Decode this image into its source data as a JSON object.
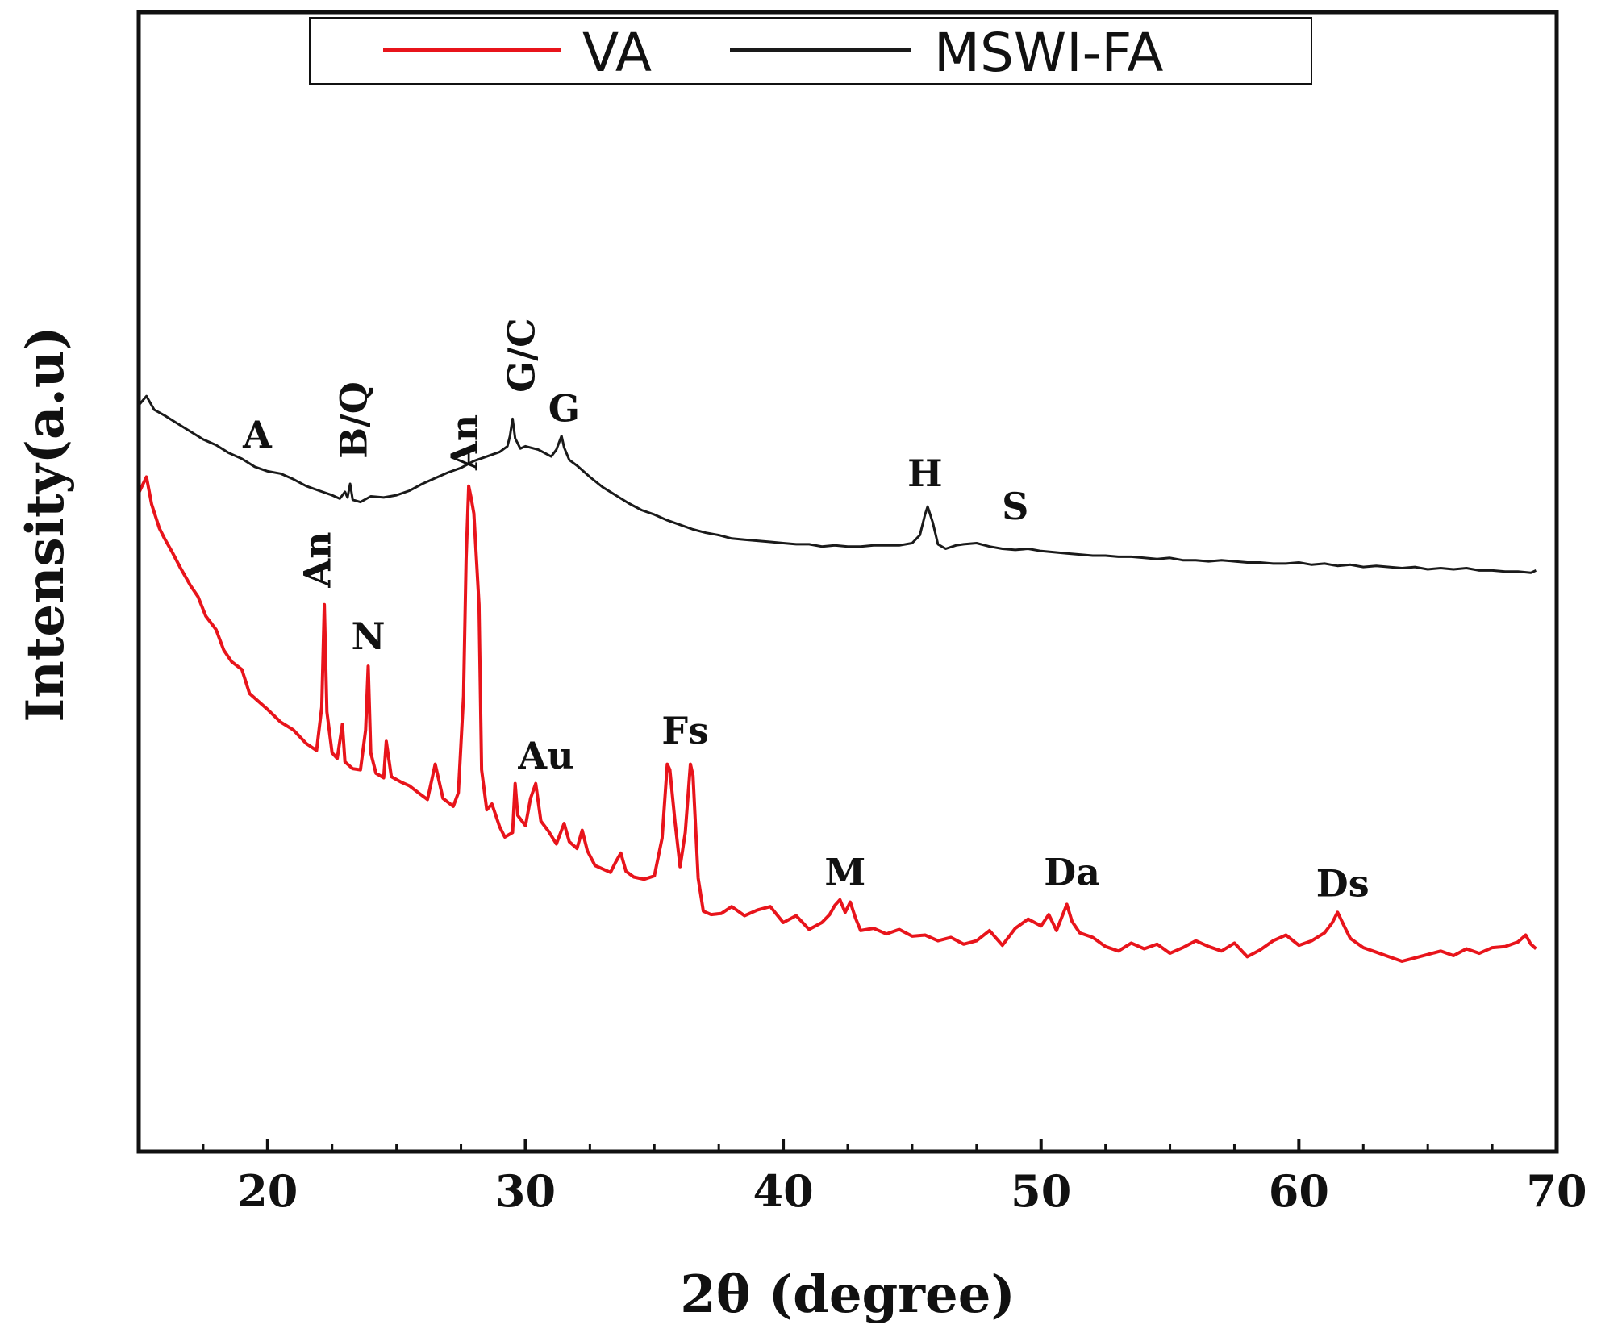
{
  "chart_data": {
    "type": "line",
    "title": "",
    "xlabel": "2θ (degree)",
    "ylabel": "Intensity(a.u)",
    "xlim": [
      15,
      70
    ],
    "ylim": [
      0,
      100
    ],
    "xticks": [
      "20",
      "30",
      "40",
      "50",
      "60",
      "70"
    ],
    "xtick_values": [
      20,
      30,
      40,
      50,
      60,
      70
    ],
    "grid": false,
    "legend_position": "top-center",
    "legend": [
      "VA",
      "MSWI-FA"
    ],
    "series": [
      {
        "name": "VA",
        "color": "#e8141b",
        "points": [
          [
            15.0,
            57.8
          ],
          [
            15.3,
            59.2
          ],
          [
            15.5,
            56.8
          ],
          [
            15.8,
            54.7
          ],
          [
            16.0,
            53.8
          ],
          [
            16.3,
            52.6
          ],
          [
            16.6,
            51.3
          ],
          [
            17.0,
            49.7
          ],
          [
            17.3,
            48.7
          ],
          [
            17.6,
            47.0
          ],
          [
            18.0,
            45.8
          ],
          [
            18.3,
            44.0
          ],
          [
            18.6,
            43.0
          ],
          [
            19.0,
            42.3
          ],
          [
            19.3,
            40.2
          ],
          [
            19.6,
            39.6
          ],
          [
            20.0,
            38.8
          ],
          [
            20.5,
            37.7
          ],
          [
            21.0,
            37.0
          ],
          [
            21.5,
            35.8
          ],
          [
            21.9,
            35.2
          ],
          [
            22.1,
            39.0
          ],
          [
            22.2,
            48.0
          ],
          [
            22.3,
            38.6
          ],
          [
            22.5,
            35.0
          ],
          [
            22.7,
            34.5
          ],
          [
            22.9,
            37.5
          ],
          [
            23.0,
            34.2
          ],
          [
            23.3,
            33.6
          ],
          [
            23.6,
            33.5
          ],
          [
            23.8,
            37.0
          ],
          [
            23.9,
            42.6
          ],
          [
            24.0,
            35.0
          ],
          [
            24.2,
            33.2
          ],
          [
            24.5,
            32.8
          ],
          [
            24.6,
            36.0
          ],
          [
            24.8,
            32.9
          ],
          [
            25.2,
            32.4
          ],
          [
            25.5,
            32.1
          ],
          [
            25.9,
            31.4
          ],
          [
            26.2,
            30.9
          ],
          [
            26.5,
            34.0
          ],
          [
            26.8,
            31.0
          ],
          [
            27.2,
            30.3
          ],
          [
            27.4,
            31.5
          ],
          [
            27.6,
            40.0
          ],
          [
            27.7,
            52.0
          ],
          [
            27.8,
            58.4
          ],
          [
            27.9,
            57.3
          ],
          [
            28.0,
            56.0
          ],
          [
            28.2,
            48.0
          ],
          [
            28.3,
            33.5
          ],
          [
            28.5,
            30.0
          ],
          [
            28.7,
            30.5
          ],
          [
            29.0,
            28.5
          ],
          [
            29.2,
            27.6
          ],
          [
            29.5,
            28.0
          ],
          [
            29.6,
            32.3
          ],
          [
            29.7,
            29.5
          ],
          [
            30.0,
            28.6
          ],
          [
            30.2,
            31.0
          ],
          [
            30.4,
            32.3
          ],
          [
            30.6,
            29.0
          ],
          [
            30.9,
            28.1
          ],
          [
            31.2,
            27.0
          ],
          [
            31.5,
            28.8
          ],
          [
            31.7,
            27.2
          ],
          [
            32.0,
            26.6
          ],
          [
            32.2,
            28.2
          ],
          [
            32.4,
            26.4
          ],
          [
            32.7,
            25.1
          ],
          [
            33.0,
            24.8
          ],
          [
            33.3,
            24.5
          ],
          [
            33.5,
            25.4
          ],
          [
            33.7,
            26.2
          ],
          [
            33.9,
            24.6
          ],
          [
            34.2,
            24.1
          ],
          [
            34.6,
            23.9
          ],
          [
            35.0,
            24.2
          ],
          [
            35.3,
            27.5
          ],
          [
            35.5,
            34.0
          ],
          [
            35.6,
            33.5
          ],
          [
            35.8,
            29.0
          ],
          [
            36.0,
            25.0
          ],
          [
            36.2,
            28.0
          ],
          [
            36.4,
            34.0
          ],
          [
            36.5,
            33.0
          ],
          [
            36.7,
            24.0
          ],
          [
            36.9,
            21.1
          ],
          [
            37.2,
            20.8
          ],
          [
            37.6,
            20.9
          ],
          [
            38.0,
            21.5
          ],
          [
            38.5,
            20.7
          ],
          [
            39.0,
            21.2
          ],
          [
            39.5,
            21.5
          ],
          [
            40.0,
            20.1
          ],
          [
            40.5,
            20.7
          ],
          [
            41.0,
            19.5
          ],
          [
            41.5,
            20.1
          ],
          [
            41.8,
            20.8
          ],
          [
            42.0,
            21.6
          ],
          [
            42.2,
            22.1
          ],
          [
            42.4,
            21.0
          ],
          [
            42.6,
            21.9
          ],
          [
            42.8,
            20.5
          ],
          [
            43.0,
            19.4
          ],
          [
            43.5,
            19.6
          ],
          [
            44.0,
            19.1
          ],
          [
            44.5,
            19.5
          ],
          [
            45.0,
            18.9
          ],
          [
            45.5,
            19.0
          ],
          [
            46.0,
            18.5
          ],
          [
            46.5,
            18.8
          ],
          [
            47.0,
            18.2
          ],
          [
            47.5,
            18.5
          ],
          [
            48.0,
            19.4
          ],
          [
            48.5,
            18.1
          ],
          [
            49.0,
            19.6
          ],
          [
            49.5,
            20.4
          ],
          [
            50.0,
            19.8
          ],
          [
            50.3,
            20.8
          ],
          [
            50.6,
            19.4
          ],
          [
            51.0,
            21.7
          ],
          [
            51.2,
            20.2
          ],
          [
            51.5,
            19.2
          ],
          [
            52.0,
            18.8
          ],
          [
            52.5,
            18.0
          ],
          [
            53.0,
            17.6
          ],
          [
            53.5,
            18.3
          ],
          [
            54.0,
            17.8
          ],
          [
            54.5,
            18.2
          ],
          [
            55.0,
            17.4
          ],
          [
            55.5,
            17.9
          ],
          [
            56.0,
            18.5
          ],
          [
            56.5,
            18.0
          ],
          [
            57.0,
            17.6
          ],
          [
            57.5,
            18.3
          ],
          [
            58.0,
            17.1
          ],
          [
            58.5,
            17.7
          ],
          [
            59.0,
            18.5
          ],
          [
            59.5,
            19.0
          ],
          [
            60.0,
            18.1
          ],
          [
            60.5,
            18.5
          ],
          [
            61.0,
            19.2
          ],
          [
            61.3,
            20.1
          ],
          [
            61.5,
            21.0
          ],
          [
            61.8,
            19.6
          ],
          [
            62.0,
            18.7
          ],
          [
            62.5,
            17.9
          ],
          [
            63.0,
            17.5
          ],
          [
            63.5,
            17.1
          ],
          [
            64.0,
            16.7
          ],
          [
            64.5,
            17.0
          ],
          [
            65.0,
            17.3
          ],
          [
            65.5,
            17.6
          ],
          [
            66.0,
            17.2
          ],
          [
            66.5,
            17.8
          ],
          [
            67.0,
            17.4
          ],
          [
            67.5,
            17.9
          ],
          [
            68.0,
            18.0
          ],
          [
            68.5,
            18.4
          ],
          [
            68.8,
            19.0
          ],
          [
            69.0,
            18.2
          ],
          [
            69.2,
            17.8
          ]
        ]
      },
      {
        "name": "MSWI-FA",
        "color": "#1a1a1a",
        "points": [
          [
            15.0,
            65.5
          ],
          [
            15.3,
            66.3
          ],
          [
            15.6,
            65.1
          ],
          [
            16.0,
            64.6
          ],
          [
            16.5,
            63.9
          ],
          [
            17.0,
            63.2
          ],
          [
            17.5,
            62.5
          ],
          [
            18.0,
            62.0
          ],
          [
            18.5,
            61.3
          ],
          [
            19.0,
            60.8
          ],
          [
            19.5,
            60.1
          ],
          [
            20.0,
            59.7
          ],
          [
            20.5,
            59.5
          ],
          [
            21.0,
            59.0
          ],
          [
            21.5,
            58.4
          ],
          [
            22.0,
            58.0
          ],
          [
            22.5,
            57.6
          ],
          [
            22.8,
            57.3
          ],
          [
            23.0,
            57.9
          ],
          [
            23.1,
            57.4
          ],
          [
            23.2,
            58.6
          ],
          [
            23.3,
            57.2
          ],
          [
            23.6,
            57.0
          ],
          [
            24.0,
            57.5
          ],
          [
            24.5,
            57.4
          ],
          [
            25.0,
            57.6
          ],
          [
            25.5,
            58.0
          ],
          [
            26.0,
            58.6
          ],
          [
            26.5,
            59.1
          ],
          [
            27.0,
            59.6
          ],
          [
            27.5,
            60.0
          ],
          [
            28.0,
            60.6
          ],
          [
            28.5,
            61.0
          ],
          [
            29.0,
            61.4
          ],
          [
            29.3,
            61.9
          ],
          [
            29.4,
            62.8
          ],
          [
            29.5,
            64.3
          ],
          [
            29.6,
            62.6
          ],
          [
            29.8,
            61.7
          ],
          [
            30.0,
            61.9
          ],
          [
            30.5,
            61.6
          ],
          [
            31.0,
            61.0
          ],
          [
            31.2,
            61.6
          ],
          [
            31.4,
            62.8
          ],
          [
            31.5,
            61.8
          ],
          [
            31.7,
            60.7
          ],
          [
            32.0,
            60.2
          ],
          [
            32.5,
            59.2
          ],
          [
            33.0,
            58.3
          ],
          [
            33.5,
            57.6
          ],
          [
            34.0,
            56.9
          ],
          [
            34.5,
            56.3
          ],
          [
            35.0,
            55.9
          ],
          [
            35.5,
            55.4
          ],
          [
            36.0,
            55.0
          ],
          [
            36.5,
            54.6
          ],
          [
            37.0,
            54.3
          ],
          [
            37.5,
            54.1
          ],
          [
            38.0,
            53.8
          ],
          [
            38.5,
            53.7
          ],
          [
            39.0,
            53.6
          ],
          [
            39.5,
            53.5
          ],
          [
            40.0,
            53.4
          ],
          [
            40.5,
            53.3
          ],
          [
            41.0,
            53.3
          ],
          [
            41.5,
            53.1
          ],
          [
            42.0,
            53.2
          ],
          [
            42.5,
            53.1
          ],
          [
            43.0,
            53.1
          ],
          [
            43.5,
            53.2
          ],
          [
            44.0,
            53.2
          ],
          [
            44.5,
            53.2
          ],
          [
            45.0,
            53.4
          ],
          [
            45.3,
            54.1
          ],
          [
            45.5,
            55.9
          ],
          [
            45.6,
            56.6
          ],
          [
            45.8,
            55.2
          ],
          [
            46.0,
            53.3
          ],
          [
            46.3,
            52.9
          ],
          [
            46.7,
            53.2
          ],
          [
            47.0,
            53.3
          ],
          [
            47.5,
            53.4
          ],
          [
            48.0,
            53.1
          ],
          [
            48.5,
            52.9
          ],
          [
            49.0,
            52.8
          ],
          [
            49.5,
            52.9
          ],
          [
            50.0,
            52.7
          ],
          [
            50.5,
            52.6
          ],
          [
            51.0,
            52.5
          ],
          [
            51.5,
            52.4
          ],
          [
            52.0,
            52.3
          ],
          [
            52.5,
            52.3
          ],
          [
            53.0,
            52.2
          ],
          [
            53.5,
            52.2
          ],
          [
            54.0,
            52.1
          ],
          [
            54.5,
            52.0
          ],
          [
            55.0,
            52.1
          ],
          [
            55.5,
            51.9
          ],
          [
            56.0,
            51.9
          ],
          [
            56.5,
            51.8
          ],
          [
            57.0,
            51.9
          ],
          [
            57.5,
            51.8
          ],
          [
            58.0,
            51.7
          ],
          [
            58.5,
            51.7
          ],
          [
            59.0,
            51.6
          ],
          [
            59.5,
            51.6
          ],
          [
            60.0,
            51.7
          ],
          [
            60.5,
            51.5
          ],
          [
            61.0,
            51.6
          ],
          [
            61.5,
            51.4
          ],
          [
            62.0,
            51.5
          ],
          [
            62.5,
            51.3
          ],
          [
            63.0,
            51.4
          ],
          [
            63.5,
            51.3
          ],
          [
            64.0,
            51.2
          ],
          [
            64.5,
            51.3
          ],
          [
            65.0,
            51.1
          ],
          [
            65.5,
            51.2
          ],
          [
            66.0,
            51.1
          ],
          [
            66.5,
            51.2
          ],
          [
            67.0,
            51.0
          ],
          [
            67.5,
            51.0
          ],
          [
            68.0,
            50.9
          ],
          [
            68.5,
            50.9
          ],
          [
            69.0,
            50.8
          ],
          [
            69.2,
            51.0
          ]
        ]
      }
    ],
    "annotations": [
      {
        "text": "A",
        "x": 19.6,
        "y": 61.8,
        "rotated": false
      },
      {
        "text": "B/Q",
        "x": 23.4,
        "y": 60.8,
        "rotated": true
      },
      {
        "text": "G/C",
        "x": 29.9,
        "y": 66.6,
        "rotated": true
      },
      {
        "text": "G",
        "x": 31.5,
        "y": 64.1,
        "rotated": false
      },
      {
        "text": "H",
        "x": 45.5,
        "y": 58.4,
        "rotated": false
      },
      {
        "text": "S",
        "x": 49.0,
        "y": 55.5,
        "rotated": false
      },
      {
        "text": "An",
        "x": 27.7,
        "y": 59.8,
        "rotated": true
      },
      {
        "text": "An",
        "x": 22.0,
        "y": 49.5,
        "rotated": true
      },
      {
        "text": "N",
        "x": 23.9,
        "y": 44.1,
        "rotated": false
      },
      {
        "text": "Fs",
        "x": 36.2,
        "y": 35.8,
        "rotated": false
      },
      {
        "text": "Au",
        "x": 30.8,
        "y": 33.6,
        "rotated": false
      },
      {
        "text": "M",
        "x": 42.4,
        "y": 23.4,
        "rotated": false
      },
      {
        "text": "Da",
        "x": 51.2,
        "y": 23.4,
        "rotated": false
      },
      {
        "text": "Ds",
        "x": 61.7,
        "y": 22.4,
        "rotated": false
      }
    ]
  }
}
